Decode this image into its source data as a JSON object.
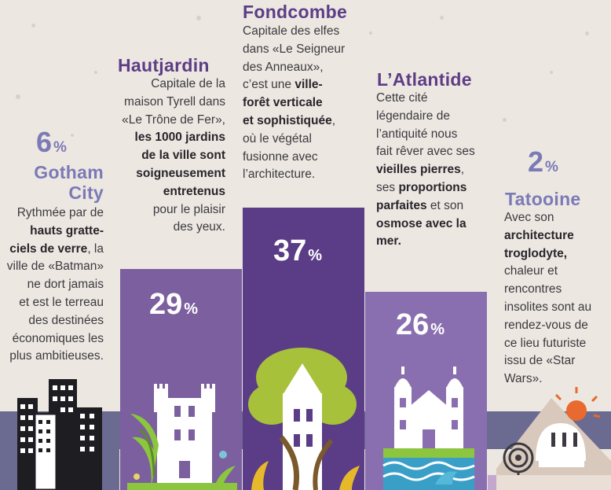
{
  "chart_data": {
    "type": "bar",
    "categories": [
      "Gotham City",
      "Hautjardin",
      "Fondcombe",
      "L’Atlantide",
      "Tatooine"
    ],
    "values": [
      6,
      29,
      37,
      26,
      2
    ],
    "unit": "%",
    "colors": [
      "#6b6a91",
      "#7b5f9e",
      "#5b3c87",
      "#8a6fb0",
      "#c4a7cd"
    ],
    "value_labels": [
      {
        "num": "6",
        "sym": "%"
      },
      {
        "num": "29",
        "sym": "%"
      },
      {
        "num": "37",
        "sym": "%"
      },
      {
        "num": "26",
        "sym": "%"
      },
      {
        "num": "2",
        "sym": "%"
      }
    ]
  },
  "items": [
    {
      "title_lines": [
        "Gotham",
        "City"
      ],
      "desc_lines": [
        "Rythmée par de",
        "<b>hauts gratte-</b>",
        "<b>ciels de verre</b>, la",
        "ville de «Batman»",
        "ne dort jamais",
        "et est le terreau",
        "des destinées",
        "économiques les",
        "plus ambitieuses."
      ]
    },
    {
      "title_lines": [
        "Hautjardin"
      ],
      "desc_lines": [
        "Capitale de la",
        "maison Tyrell dans",
        "«Le Trône de Fer»,",
        "<b>les 1000 jardins</b>",
        "<b>de la ville sont</b>",
        "<b>soigneusement</b>",
        "<b>entretenus</b>",
        "pour le plaisir",
        "des yeux."
      ]
    },
    {
      "title_lines": [
        "Fondcombe"
      ],
      "desc_lines": [
        "Capitale des elfes",
        "dans «Le Seigneur",
        "des Anneaux»,",
        "c’est une <b>ville-</b>",
        "<b>forêt verticale</b>",
        "<b>et sophistiquée</b>,",
        "où le végétal",
        "fusionne avec",
        "l’architecture."
      ]
    },
    {
      "title_lines": [
        "L’Atlantide"
      ],
      "desc_lines": [
        "Cette cité",
        "légendaire de",
        "l’antiquité nous",
        "fait rêver avec ses",
        "<b>vieilles pierres</b>,",
        "ses <b>proportions</b>",
        "<b>parfaites</b> et son",
        "<b>osmose avec la</b>",
        "<b>mer.</b>"
      ]
    },
    {
      "title_lines": [
        "Tatooine"
      ],
      "desc_lines": [
        "Avec son",
        "<b>architecture</b>",
        "<b>troglodyte,</b>",
        "chaleur et",
        "rencontres",
        "insolites sont au",
        "rendez-vous de",
        "ce lieu futuriste",
        "issu de «Star",
        "Wars»."
      ]
    }
  ],
  "icons": [
    "skyscrapers-icon",
    "garden-castle-icon",
    "forest-tower-icon",
    "atlantis-church-icon",
    "desert-dome-icon"
  ]
}
